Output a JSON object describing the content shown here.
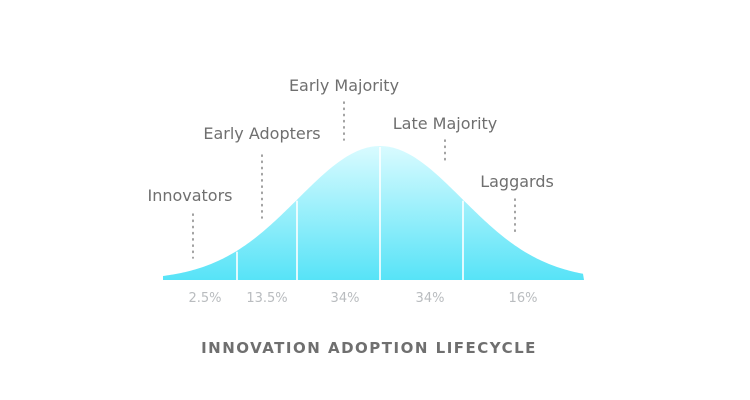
{
  "diagram": {
    "title": "INNOVATION ADOPTION LIFECYCLE",
    "segments": [
      {
        "label": "Innovators",
        "percent": "2.5%"
      },
      {
        "label": "Early Adopters",
        "percent": "13.5%"
      },
      {
        "label": "Early Majority",
        "percent": "34%"
      },
      {
        "label": "Late Majority",
        "percent": "34%"
      },
      {
        "label": "Laggards",
        "percent": "16%"
      }
    ],
    "colors": {
      "curve_top": "#d9fbff",
      "curve_bottom": "#57e3f7",
      "text": "#6f6f6f",
      "percent_text": "#b9bcbf",
      "leader": "#8a8a8a"
    }
  }
}
